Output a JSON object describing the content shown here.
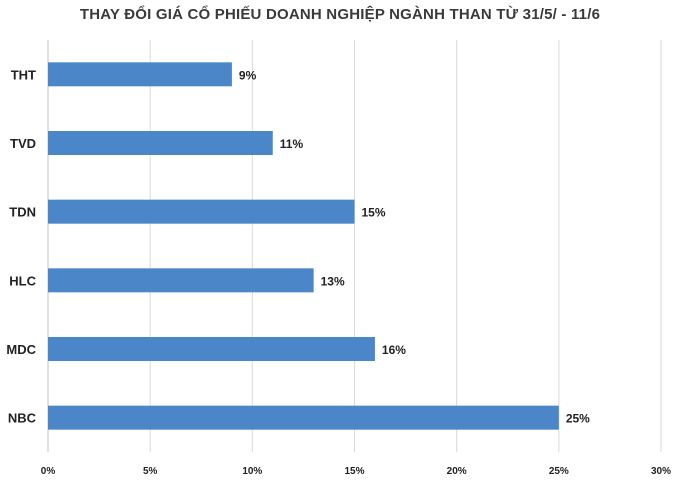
{
  "chart_data": {
    "type": "bar",
    "orientation": "horizontal",
    "title": "THAY ĐỔI GIÁ CỔ PHIẾU DOANH NGHIỆP NGÀNH THAN TỪ 31/5/ - 11/6",
    "categories": [
      "THT",
      "TVD",
      "TDN",
      "HLC",
      "MDC",
      "NBC"
    ],
    "values": [
      9,
      11,
      15,
      13,
      16,
      25
    ],
    "value_labels": [
      "9%",
      "11%",
      "15%",
      "13%",
      "16%",
      "25%"
    ],
    "xlim": [
      0,
      30
    ],
    "x_ticks": [
      0,
      5,
      10,
      15,
      20,
      25,
      30
    ],
    "x_tick_labels": [
      "0%",
      "5%",
      "10%",
      "15%",
      "20%",
      "25%",
      "30%"
    ],
    "grid": true,
    "bar_color": "#4a86c8",
    "grid_color": "#d9d9d9"
  }
}
